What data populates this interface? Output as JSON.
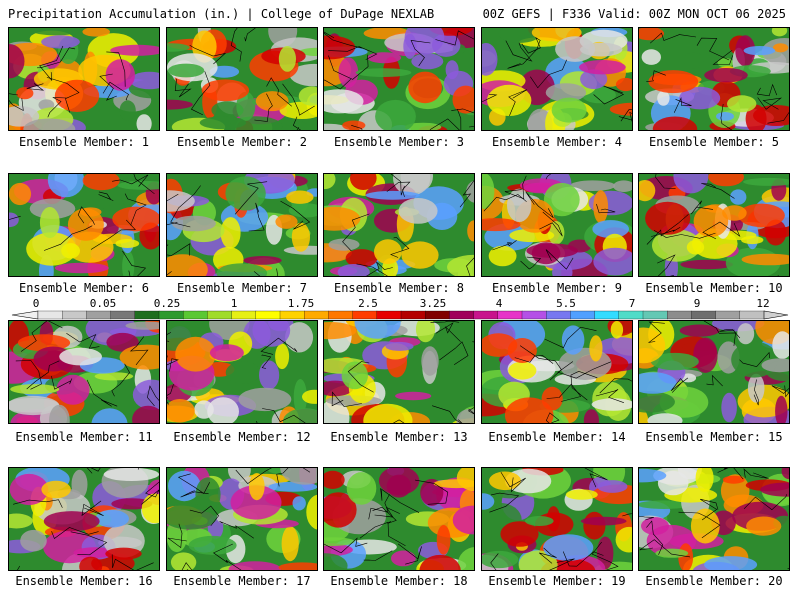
{
  "header": {
    "title": "Precipitation Accumulation (in.) | College of DuPage NEXLAB",
    "run_info": "00Z GEFS | F336 Valid: 00Z MON OCT 06 2025"
  },
  "members": [
    {
      "label": "Ensemble Member: 1"
    },
    {
      "label": "Ensemble Member: 2"
    },
    {
      "label": "Ensemble Member: 3"
    },
    {
      "label": "Ensemble Member: 4"
    },
    {
      "label": "Ensemble Member: 5"
    },
    {
      "label": "Ensemble Member: 6"
    },
    {
      "label": "Ensemble Member: 7"
    },
    {
      "label": "Ensemble Member: 8"
    },
    {
      "label": "Ensemble Member: 9"
    },
    {
      "label": "Ensemble Member: 10"
    },
    {
      "label": "Ensemble Member: 11"
    },
    {
      "label": "Ensemble Member: 12"
    },
    {
      "label": "Ensemble Member: 13"
    },
    {
      "label": "Ensemble Member: 14"
    },
    {
      "label": "Ensemble Member: 15"
    },
    {
      "label": "Ensemble Member: 16"
    },
    {
      "label": "Ensemble Member: 17"
    },
    {
      "label": "Ensemble Member: 18"
    },
    {
      "label": "Ensemble Member: 19"
    },
    {
      "label": "Ensemble Member: 20"
    }
  ],
  "colorbar": {
    "ticks": [
      "0",
      "0.05",
      "0.25",
      "1",
      "1.75",
      "2.5",
      "3.25",
      "4",
      "5.5",
      "7",
      "9",
      "12"
    ],
    "colors": [
      "#e6e6e6",
      "#c8c8c8",
      "#a0a0a0",
      "#787878",
      "#1e6e1e",
      "#2e9a2e",
      "#5ac832",
      "#a0dc28",
      "#e6f014",
      "#ffff00",
      "#ffd200",
      "#ffaa00",
      "#ff7800",
      "#ff3c00",
      "#e60000",
      "#b40000",
      "#800000",
      "#a0005a",
      "#c8148c",
      "#e632c8",
      "#b450e6",
      "#7878f0",
      "#50a0ff",
      "#32dcff",
      "#50dcc8",
      "#64c8b4",
      "#8c8c8c",
      "#6e6e6e",
      "#a0a0a0",
      "#c0c0c0"
    ]
  }
}
